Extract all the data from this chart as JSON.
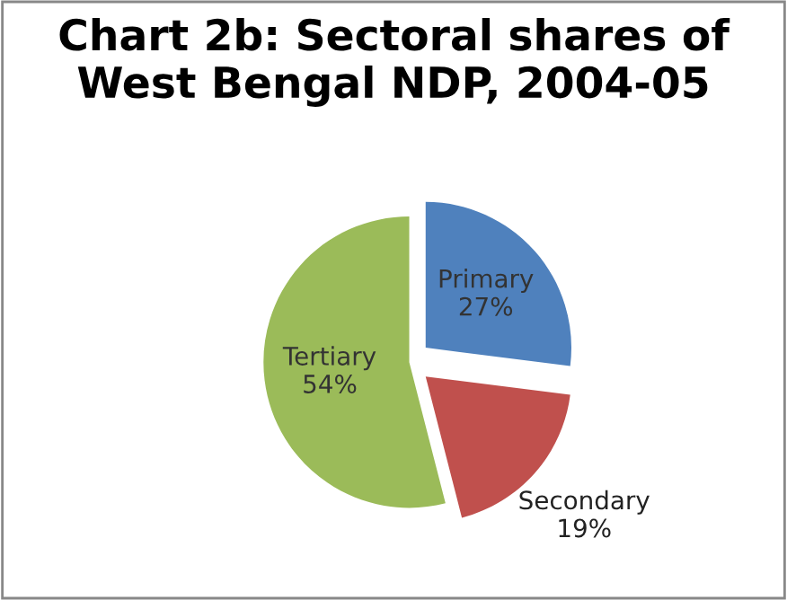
{
  "chart_data": {
    "type": "pie",
    "title": "Chart 2b: Sectoral shares of West Bengal NDP, 2004-05",
    "categories": [
      "Primary",
      "Secondary",
      "Tertiary"
    ],
    "values": [
      27,
      19,
      54
    ],
    "value_labels": [
      "27%",
      "19%",
      "54%"
    ],
    "colors": [
      "#4f81bd",
      "#c0504d",
      "#9bbb59"
    ],
    "legend": false
  }
}
